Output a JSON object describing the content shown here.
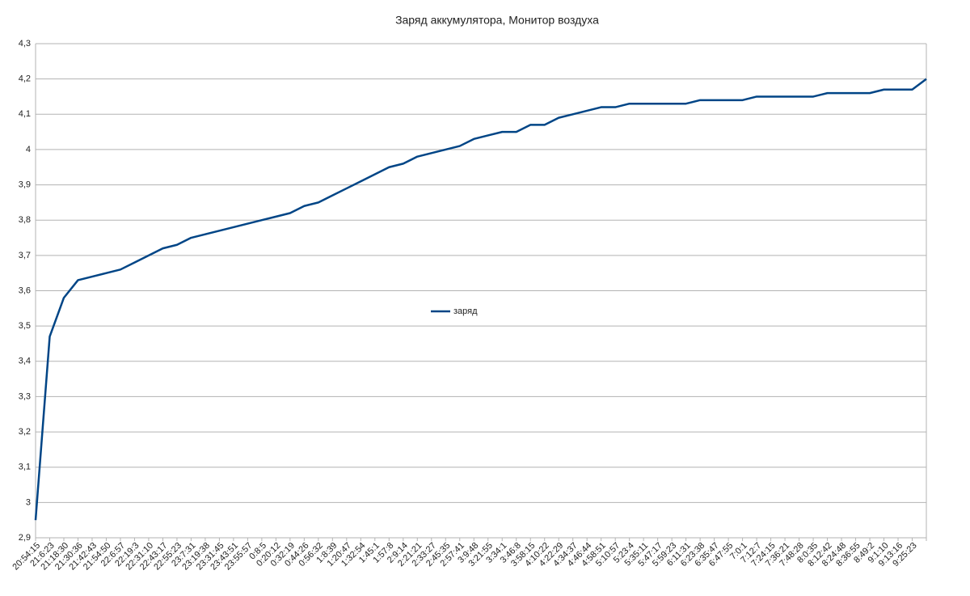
{
  "chart_data": {
    "type": "line",
    "title": "Заряд аккумулятора, Монитор воздуха",
    "categories": [
      "20:54:15",
      "21:6:23",
      "21:18:30",
      "21:30:36",
      "21:42:43",
      "21:54:50",
      "22:6:57",
      "22:19:3",
      "22:31:10",
      "22:43:17",
      "22:55:23",
      "23:7:31",
      "23:19:38",
      "23:31:45",
      "23:43:51",
      "23:55:57",
      "0:8:5",
      "0:20:12",
      "0:32:19",
      "0:44:26",
      "0:56:32",
      "1:8:39",
      "1:20:47",
      "1:32:54",
      "1:45:1",
      "1:57:8",
      "2:9:14",
      "2:21:21",
      "2:33:27",
      "2:45:35",
      "2:57:41",
      "3:9:48",
      "3:21:55",
      "3:34:1",
      "3:46:8",
      "3:58:15",
      "4:10:22",
      "4:22:29",
      "4:34:37",
      "4:46:44",
      "4:58:51",
      "5:10:57",
      "5:23:4",
      "5:35:11",
      "5:47:17",
      "5:59:23",
      "6:11:31",
      "6:23:38",
      "6:35:47",
      "6:47:55",
      "7:0:1",
      "7:12:7",
      "7:24:15",
      "7:36:21",
      "7:48:28",
      "8:0:35",
      "8:12:42",
      "8:24:48",
      "8:36:55",
      "8:49:2",
      "9:1:10",
      "9:13:16",
      "9:25:23",
      null
    ],
    "series": [
      {
        "name": "заряд",
        "color": "#004586",
        "values": [
          2.95,
          3.47,
          3.58,
          3.63,
          3.64,
          3.65,
          3.66,
          3.68,
          3.7,
          3.72,
          3.73,
          3.75,
          3.76,
          3.77,
          3.78,
          3.79,
          3.8,
          3.81,
          3.82,
          3.84,
          3.85,
          3.87,
          3.89,
          3.91,
          3.93,
          3.95,
          3.96,
          3.98,
          3.99,
          4.0,
          4.01,
          4.03,
          4.04,
          4.05,
          4.05,
          4.07,
          4.07,
          4.09,
          4.1,
          4.11,
          4.12,
          4.12,
          4.13,
          4.13,
          4.13,
          4.13,
          4.13,
          4.14,
          4.14,
          4.14,
          4.14,
          4.15,
          4.15,
          4.15,
          4.15,
          4.15,
          4.16,
          4.16,
          4.16,
          4.16,
          4.17,
          4.17,
          4.17,
          4.2
        ]
      }
    ],
    "ylim": [
      2.9,
      4.3
    ],
    "yticks": [
      {
        "value": 2.9,
        "label": "2,9"
      },
      3,
      {
        "value": 3.1,
        "label": "3,1"
      },
      {
        "value": 3.2,
        "label": "3,2"
      },
      {
        "value": 3.3,
        "label": "3,3"
      },
      {
        "value": 3.4,
        "label": "3,4"
      },
      {
        "value": 3.5,
        "label": "3,5"
      },
      {
        "value": 3.6,
        "label": "3,6"
      },
      {
        "value": 3.7,
        "label": "3,7"
      },
      {
        "value": 3.8,
        "label": "3,8"
      },
      {
        "value": 3.9,
        "label": "3,9"
      },
      4,
      {
        "value": 4.1,
        "label": "4,1"
      },
      {
        "value": 4.2,
        "label": "4,2"
      },
      {
        "value": 4.3,
        "label": "4,3"
      }
    ],
    "grid": true,
    "legend": "center"
  }
}
